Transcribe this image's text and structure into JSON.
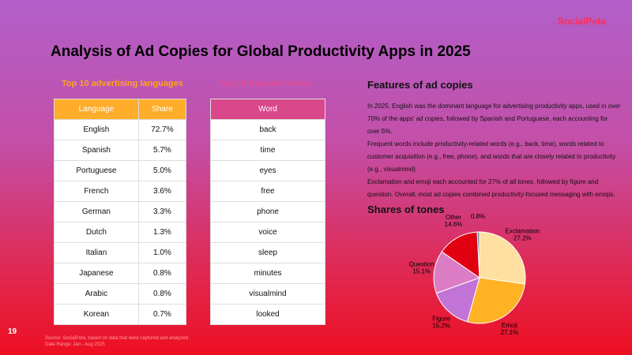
{
  "header": {
    "brand": "SocialPeta",
    "title": "Analysis of Ad Copies for Global Productivity Apps in 2025"
  },
  "languages_table": {
    "title": "Top 10 advertising languages",
    "columns": [
      "Language",
      "Share"
    ],
    "rows": [
      [
        "English",
        "72.7%"
      ],
      [
        "Spanish",
        "5.7%"
      ],
      [
        "Portuguese",
        "5.0%"
      ],
      [
        "French",
        "3.6%"
      ],
      [
        "German",
        "3.3%"
      ],
      [
        "Dutch",
        "1.3%"
      ],
      [
        "Italian",
        "1.0%"
      ],
      [
        "Japanese",
        "0.8%"
      ],
      [
        "Arabic",
        "0.8%"
      ],
      [
        "Korean",
        "0.7%"
      ]
    ]
  },
  "words_table": {
    "title": "Top 10 frequent words",
    "columns": [
      "Word"
    ],
    "rows": [
      [
        "back"
      ],
      [
        "time"
      ],
      [
        "eyes"
      ],
      [
        "free"
      ],
      [
        "phone"
      ],
      [
        "voice"
      ],
      [
        "sleep"
      ],
      [
        "minutes"
      ],
      [
        "visualmind"
      ],
      [
        "looked"
      ]
    ]
  },
  "features": {
    "title": "Features of ad copies",
    "paragraphs": [
      "In 2025, English was the dominant language for advertising productivity apps, used in over 70% of the apps' ad copies, followed by Spanish and Portuguese, each accounting for over 5%.",
      "Frequent words include productivity-related words (e.g., back, time), words related to customer acquisition (e.g., free, phone), and words that are closely related to productivity (e.g., visualmind).",
      "Exclamation and emoji each accounted for 27% of all tones, followed by figure and question. Overall, most ad copies combined productivity-focused messaging with emojis."
    ]
  },
  "tones_chart": {
    "type": "pie",
    "title": "Shares of tones",
    "categories": [
      "Exclamation",
      "Emoji",
      "Figure",
      "Question",
      "Other",
      "Label"
    ],
    "values": [
      27.2,
      27.1,
      15.2,
      15.1,
      14.6,
      0.8
    ],
    "value_labels": [
      "27.2%",
      "27.1%",
      "15.2%",
      "15.1%",
      "14.6%",
      "0.8%"
    ],
    "colors": [
      "#ffe0a0",
      "#ffb224",
      "#c274d6",
      "#dc7cc4",
      "#e0000f",
      "#5f8c9c"
    ]
  },
  "footer": {
    "source": "Source: SocialPeta, based on data that were captured and analyzed",
    "date_range": "Date Range: Jan - Aug 2025",
    "page": "19"
  }
}
